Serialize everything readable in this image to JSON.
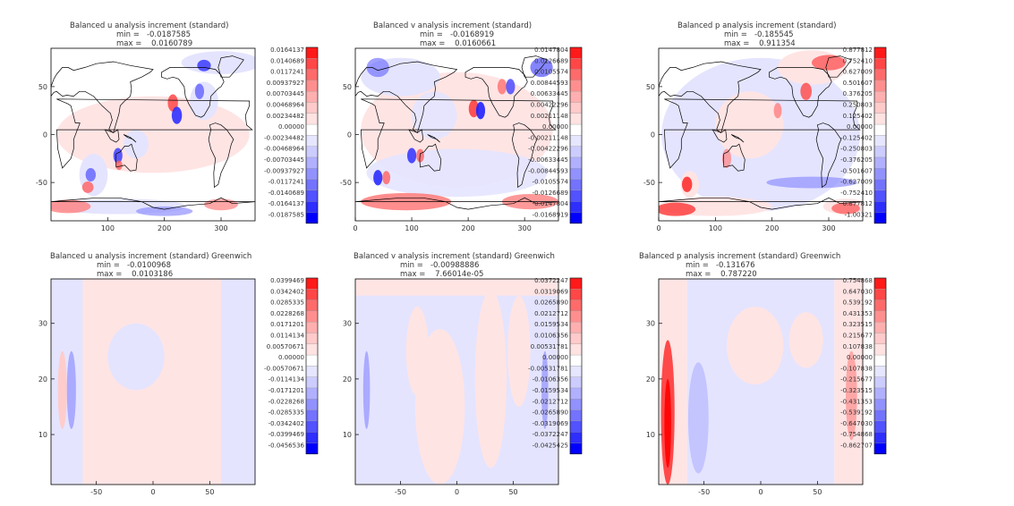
{
  "panels": [
    {
      "id": "u-map",
      "view": "map",
      "title": "Balanced u analysis increment (standard)",
      "min_label": "min =",
      "min_value": "-0.0187585",
      "max_label": "max =",
      "max_value": "0.0160789",
      "x_ticks": [
        "100",
        "200",
        "300"
      ],
      "y_ticks": [
        "50",
        "0",
        "-50"
      ],
      "colorbar": [
        "0.0164137",
        "0.0140689",
        "0.0117241",
        "0.00937927",
        "0.00703445",
        "0.00468964",
        "0.00234482",
        "0.00000",
        "-0.00234482",
        "-0.00468964",
        "-0.00703445",
        "-0.00937927",
        "-0.0117241",
        "-0.0140689",
        "-0.0164137",
        "-0.0187585"
      ]
    },
    {
      "id": "v-map",
      "view": "map",
      "title": "Balanced v analysis increment (standard)",
      "min_label": "min =",
      "min_value": "-0.0168919",
      "max_label": "max =",
      "max_value": "0.0160661",
      "x_ticks": [
        "0",
        "100",
        "200",
        "300"
      ],
      "y_ticks": [
        "50",
        "0",
        "-50"
      ],
      "colorbar": [
        "0.0147804",
        "0.0126689",
        "0.0105574",
        "0.00844593",
        "0.00633445",
        "0.00422296",
        "0.00211148",
        "0.00000",
        "-0.00211148",
        "-0.00422296",
        "-0.00633445",
        "-0.00844593",
        "-0.0105574",
        "-0.0126689",
        "-0.0147804",
        "-0.0168919"
      ]
    },
    {
      "id": "p-map",
      "view": "map",
      "title": "Balanced p analysis increment (standard)",
      "min_label": "min =",
      "min_value": "-0.185545",
      "max_label": "max =",
      "max_value": "0.911354",
      "x_ticks": [
        "0",
        "100",
        "200",
        "300"
      ],
      "y_ticks": [
        "50",
        "0",
        "-50"
      ],
      "colorbar": [
        "0.877812",
        "0.752410",
        "0.627009",
        "0.501607",
        "0.376205",
        "0.250803",
        "0.125402",
        "0.00000",
        "-0.125402",
        "-0.250803",
        "-0.376205",
        "-0.501607",
        "-0.627009",
        "-0.752410",
        "-0.877812",
        "-1.00321"
      ]
    },
    {
      "id": "u-greenwich",
      "view": "section",
      "title": "Balanced u analysis increment (standard) Greenwich",
      "min_label": "min =",
      "min_value": "-0.0100968",
      "max_label": "max =",
      "max_value": "0.0103186",
      "x_ticks": [
        "-50",
        "0",
        "50"
      ],
      "y_ticks": [
        "30",
        "20",
        "10"
      ],
      "colorbar": [
        "0.0399469",
        "0.0342402",
        "0.0285335",
        "0.0228268",
        "0.0171201",
        "0.0114134",
        "0.00570671",
        "0.00000",
        "-0.00570671",
        "-0.0114134",
        "-0.0171201",
        "-0.0228268",
        "-0.0285335",
        "-0.0342402",
        "-0.0399469",
        "-0.0456536"
      ]
    },
    {
      "id": "v-greenwich",
      "view": "section",
      "title": "Balanced v analysis increment (standard) Greenwich",
      "min_label": "min =",
      "min_value": "-0.00988886",
      "max_label": "max =",
      "max_value": "7.66014e-05",
      "x_ticks": [
        "-50",
        "0",
        "50"
      ],
      "y_ticks": [
        "30",
        "20",
        "10"
      ],
      "colorbar": [
        "0.0372247",
        "0.0319069",
        "0.0265890",
        "0.0212712",
        "0.0159534",
        "0.0106356",
        "0.00531781",
        "0.00000",
        "-0.00531781",
        "-0.0106356",
        "-0.0159534",
        "-0.0212712",
        "-0.0265890",
        "-0.0319069",
        "-0.0372247",
        "-0.0425425"
      ]
    },
    {
      "id": "p-greenwich",
      "view": "section",
      "title": "Balanced p analysis increment (standard) Greenwich",
      "min_label": "min =",
      "min_value": "-0.131676",
      "max_label": "max =",
      "max_value": "0.787220",
      "x_ticks": [
        "-50",
        "0",
        "50"
      ],
      "y_ticks": [
        "30",
        "20",
        "10"
      ],
      "colorbar": [
        "0.754868",
        "0.647030",
        "0.539192",
        "0.431353",
        "0.323515",
        "0.215677",
        "0.107838",
        "0.00000",
        "-0.107838",
        "-0.215677",
        "-0.323515",
        "-0.431353",
        "-0.539192",
        "-0.647030",
        "-0.754868",
        "-0.862707"
      ]
    }
  ],
  "colors": {
    "positive_strong": "#ff0000",
    "negative_strong": "#0000ff",
    "near_zero": "#ffffff",
    "contour": "#000000"
  },
  "chart_data": [
    {
      "type": "heatmap",
      "title": "Balanced u analysis increment (standard)",
      "x_axis": "longitude",
      "xlim": [
        0,
        360
      ],
      "ylim": [
        -90,
        90
      ],
      "x_ticks": [
        100,
        200,
        300
      ],
      "y_ticks": [
        50,
        0,
        -50
      ],
      "min": -0.0187585,
      "max": 0.0160789
    },
    {
      "type": "heatmap",
      "title": "Balanced v analysis increment (standard)",
      "x_axis": "longitude",
      "xlim": [
        0,
        360
      ],
      "ylim": [
        -90,
        90
      ],
      "x_ticks": [
        0,
        100,
        200,
        300
      ],
      "y_ticks": [
        50,
        0,
        -50
      ],
      "min": -0.0168919,
      "max": 0.0160661
    },
    {
      "type": "heatmap",
      "title": "Balanced p analysis increment (standard)",
      "x_axis": "longitude",
      "xlim": [
        0,
        360
      ],
      "ylim": [
        -90,
        90
      ],
      "x_ticks": [
        0,
        100,
        200,
        300
      ],
      "y_ticks": [
        50,
        0,
        -50
      ],
      "min": -0.185545,
      "max": 0.911354
    },
    {
      "type": "heatmap",
      "title": "Balanced u analysis increment (standard) Greenwich",
      "xlim": [
        -90,
        90
      ],
      "ylim": [
        1,
        38
      ],
      "x_ticks": [
        -50,
        0,
        50
      ],
      "y_ticks": [
        30,
        20,
        10
      ],
      "min": -0.0100968,
      "max": 0.0103186
    },
    {
      "type": "heatmap",
      "title": "Balanced v analysis increment (standard) Greenwich",
      "xlim": [
        -90,
        90
      ],
      "ylim": [
        1,
        38
      ],
      "x_ticks": [
        -50,
        0,
        50
      ],
      "y_ticks": [
        30,
        20,
        10
      ],
      "min": -0.00988886,
      "max": 7.66014e-05
    },
    {
      "type": "heatmap",
      "title": "Balanced p analysis increment (standard) Greenwich",
      "xlim": [
        -90,
        90
      ],
      "ylim": [
        1,
        38
      ],
      "x_ticks": [
        -50,
        0,
        50
      ],
      "y_ticks": [
        30,
        20,
        10
      ],
      "min": -0.131676,
      "max": 0.78722
    }
  ]
}
